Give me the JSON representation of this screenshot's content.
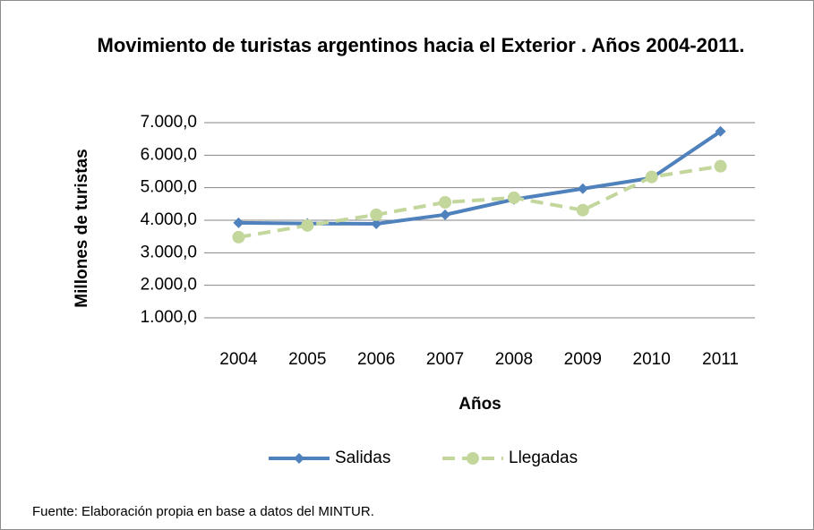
{
  "chart_data": {
    "type": "line",
    "title": "Movimiento de turistas argentinos hacia el Exterior . Años 2004-2011.",
    "x_label": "Años",
    "y_label": "Millones de turistas",
    "categories": [
      "2004",
      "2005",
      "2006",
      "2007",
      "2008",
      "2009",
      "2010",
      "2011"
    ],
    "series": [
      {
        "name": "Salidas",
        "color": "#4f81bd",
        "marker": "diamond",
        "dash": false,
        "values": [
          3920,
          3900,
          3890,
          4170,
          4640,
          4970,
          5300,
          6730
        ]
      },
      {
        "name": "Llegadas",
        "color": "#c3d69b",
        "marker": "circle",
        "dash": true,
        "values": [
          3480,
          3840,
          4170,
          4550,
          4690,
          4310,
          5330,
          5660
        ]
      }
    ],
    "ylim": [
      1000,
      7000
    ],
    "yticks": [
      {
        "value": 1000,
        "label": "1.000,0"
      },
      {
        "value": 2000,
        "label": "2.000,0"
      },
      {
        "value": 3000,
        "label": "3.000,0"
      },
      {
        "value": 4000,
        "label": "4.000,0"
      },
      {
        "value": 5000,
        "label": "5.000,0"
      },
      {
        "value": 6000,
        "label": "6.000,0"
      },
      {
        "value": 7000,
        "label": "7.000,0"
      }
    ],
    "grid": true,
    "legend": "bottom",
    "note": "Fuente: Elaboración propia en base a datos del MINTUR."
  }
}
